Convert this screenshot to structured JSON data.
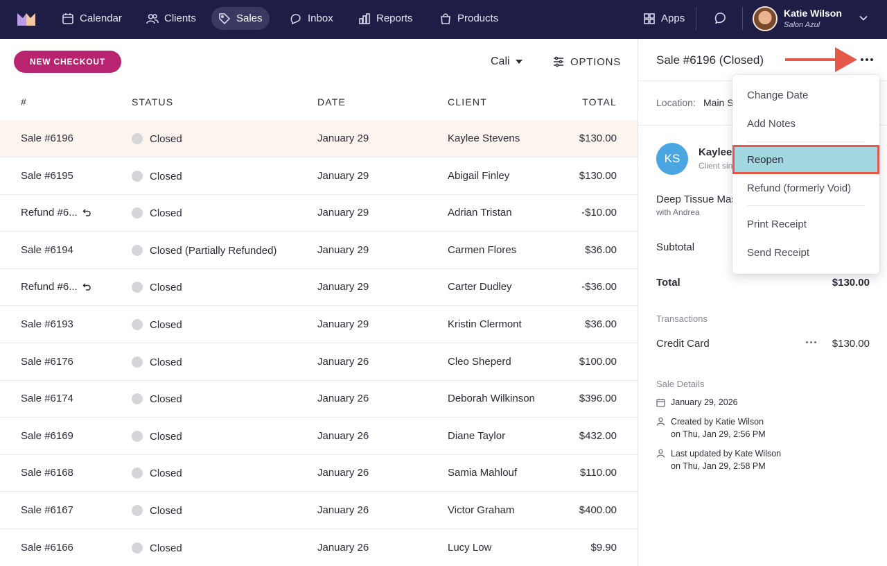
{
  "nav": {
    "items": [
      {
        "label": "Calendar",
        "icon": "calendar-icon"
      },
      {
        "label": "Clients",
        "icon": "users-icon"
      },
      {
        "label": "Sales",
        "icon": "tag-icon",
        "active": true
      },
      {
        "label": "Inbox",
        "icon": "chat-bubble-icon"
      },
      {
        "label": "Reports",
        "icon": "bar-chart-icon"
      },
      {
        "label": "Products",
        "icon": "shopping-bag-icon"
      }
    ],
    "apps_label": "Apps",
    "user_name": "Katie Wilson",
    "user_salon": "Salon Azul"
  },
  "toolbar": {
    "new_checkout_label": "NEW CHECKOUT",
    "location": "Cali",
    "options_label": "OPTIONS"
  },
  "table": {
    "headers": [
      "#",
      "STATUS",
      "DATE",
      "CLIENT",
      "TOTAL"
    ],
    "rows": [
      {
        "id": "Sale #6196",
        "status": "Closed",
        "date": "January 29",
        "client": "Kaylee Stevens",
        "total": "$130.00",
        "selected": true
      },
      {
        "id": "Sale #6195",
        "status": "Closed",
        "date": "January 29",
        "client": "Abigail Finley",
        "total": "$130.00"
      },
      {
        "id": "Refund #6...",
        "status": "Closed",
        "date": "January 29",
        "client": "Adrian Tristan",
        "total": "-$10.00",
        "refund": true
      },
      {
        "id": "Sale #6194",
        "status": "Closed (Partially Refunded)",
        "date": "January 29",
        "client": "Carmen Flores",
        "total": "$36.00"
      },
      {
        "id": "Refund #6...",
        "status": "Closed",
        "date": "January 29",
        "client": "Carter Dudley",
        "total": "-$36.00",
        "refund": true
      },
      {
        "id": "Sale #6193",
        "status": "Closed",
        "date": "January 29",
        "client": "Kristin Clermont",
        "total": "$36.00"
      },
      {
        "id": "Sale #6176",
        "status": "Closed",
        "date": "January 26",
        "client": "Cleo Sheperd",
        "total": "$100.00"
      },
      {
        "id": "Sale #6174",
        "status": "Closed",
        "date": "January 26",
        "client": "Deborah Wilkinson",
        "total": "$396.00"
      },
      {
        "id": "Sale #6169",
        "status": "Closed",
        "date": "January 26",
        "client": "Diane Taylor",
        "total": "$432.00"
      },
      {
        "id": "Sale #6168",
        "status": "Closed",
        "date": "January 26",
        "client": "Samia Mahlouf",
        "total": "$110.00"
      },
      {
        "id": "Sale #6167",
        "status": "Closed",
        "date": "January 26",
        "client": "Victor Graham",
        "total": "$400.00"
      },
      {
        "id": "Sale #6166",
        "status": "Closed",
        "date": "January 26",
        "client": "Lucy Low",
        "total": "$9.90"
      }
    ]
  },
  "detail": {
    "title": "Sale #6196 (Closed)",
    "location_label": "Location:",
    "location_value": "Main S",
    "client_initials": "KS",
    "client_name": "Kaylee",
    "client_since": "Client sin",
    "service_name": "Deep Tissue Mas",
    "service_with": "with Andrea",
    "subtotal_label": "Subtotal",
    "total_label": "Total",
    "total_value": "$130.00",
    "transactions_label": "Transactions",
    "transaction_method": "Credit Card",
    "transaction_amount": "$130.00",
    "sale_details_label": "Sale Details",
    "sale_date": "January 29, 2026",
    "created_line1": "Created by Katie Wilson",
    "created_line2": "on Thu, Jan 29, 2:56 PM",
    "updated_line1": "Last updated by Kate Wilson",
    "updated_line2": "on Thu, Jan 29, 2:58 PM"
  },
  "menu": {
    "items": [
      "Change Date",
      "Add Notes",
      "Reopen",
      "Refund (formerly Void)",
      "Print Receipt",
      "Send Receipt"
    ],
    "highlighted": "Reopen"
  },
  "colors": {
    "nav_bg": "#1e1d45",
    "brand_pink": "#b8246f",
    "selected_row": "#fdf4ee",
    "highlight_fill": "#a1d8e1",
    "callout_red": "#e4594a",
    "avatar_blue": "#4aa5e0"
  }
}
